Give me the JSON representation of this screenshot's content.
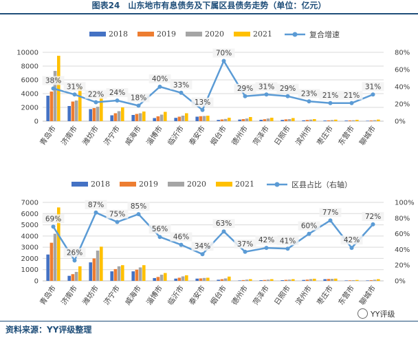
{
  "header": {
    "title": "图表24　山东地市有息债务及下属区县债务走势（单位：亿元）"
  },
  "footer": {
    "source": "资料来源：YY评级整理",
    "watermark": "YY评级"
  },
  "colors": {
    "2018": "#4472c4",
    "2019": "#ed7d31",
    "2020": "#a5a5a5",
    "2021": "#ffc000",
    "line": "#5b9bd5",
    "grid": "#d9d9d9"
  },
  "chart_data": [
    {
      "type": "bar",
      "categories": [
        "青岛市",
        "济南市",
        "潍坊市",
        "济宁市",
        "威海市",
        "淄博市",
        "临沂市",
        "泰安市",
        "烟台市",
        "德州市",
        "菏泽市",
        "日照市",
        "滨州市",
        "枣庄市",
        "东营市",
        "聊城市"
      ],
      "series": [
        {
          "name": "2018",
          "values": [
            3700,
            2200,
            1750,
            850,
            900,
            450,
            480,
            650,
            180,
            230,
            200,
            180,
            120,
            90,
            90,
            60
          ]
        },
        {
          "name": "2019",
          "values": [
            4300,
            2850,
            1900,
            1150,
            1050,
            700,
            650,
            720,
            250,
            300,
            280,
            260,
            180,
            120,
            110,
            100
          ]
        },
        {
          "name": "2020",
          "values": [
            7300,
            3000,
            2100,
            1450,
            1150,
            950,
            800,
            750,
            320,
            380,
            380,
            300,
            230,
            160,
            130,
            140
          ]
        },
        {
          "name": "2021",
          "values": [
            9500,
            4900,
            3450,
            2000,
            1400,
            1350,
            1150,
            790,
            500,
            600,
            500,
            450,
            300,
            220,
            190,
            230
          ]
        }
      ],
      "line": {
        "name": "复合增速",
        "axis": "right",
        "values": [
          38,
          31,
          22,
          24,
          18,
          40,
          33,
          13,
          70,
          29,
          31,
          29,
          23,
          21,
          21,
          31
        ],
        "labels": [
          "38%",
          "31%",
          "22%",
          "24%",
          "18%",
          "40%",
          "33%",
          "13%",
          "70%",
          "29%",
          "31%",
          "29%",
          "23%",
          "21%",
          "21%",
          "31%"
        ]
      },
      "legend": [
        "2018",
        "2019",
        "2020",
        "2021",
        "复合增速"
      ],
      "legend_position": "top",
      "ylim": [
        0,
        10000
      ],
      "y_ticks": [
        "0",
        "2000",
        "4000",
        "6000",
        "8000",
        "10000"
      ],
      "y2lim": [
        0,
        80
      ],
      "y2_ticks": [
        "0%",
        "20%",
        "40%",
        "60%",
        "80%"
      ],
      "grid": true
    },
    {
      "type": "bar",
      "categories": [
        "青岛市",
        "济南市",
        "潍坊市",
        "济宁市",
        "威海市",
        "淄博市",
        "临沂市",
        "泰安市",
        "烟台市",
        "德州市",
        "菏泽市",
        "日照市",
        "滨州市",
        "枣庄市",
        "东营市",
        "聊城市"
      ],
      "series": [
        {
          "name": "2018",
          "values": [
            2350,
            450,
            1650,
            850,
            850,
            250,
            200,
            200,
            100,
            40,
            60,
            60,
            80,
            150,
            40,
            40
          ]
        },
        {
          "name": "2019",
          "values": [
            3400,
            600,
            2000,
            1050,
            1000,
            350,
            280,
            220,
            150,
            70,
            80,
            90,
            110,
            170,
            50,
            60
          ]
        },
        {
          "name": "2020",
          "values": [
            4200,
            800,
            2700,
            1300,
            1200,
            550,
            400,
            260,
            220,
            110,
            110,
            110,
            160,
            180,
            60,
            100
          ]
        },
        {
          "name": "2021",
          "values": [
            6550,
            1300,
            3050,
            1400,
            1400,
            700,
            500,
            280,
            380,
            150,
            150,
            150,
            190,
            200,
            80,
            150
          ]
        }
      ],
      "line": {
        "name": "区县占比（右轴）",
        "axis": "right",
        "values": [
          69,
          26,
          87,
          75,
          85,
          56,
          46,
          34,
          63,
          37,
          42,
          41,
          60,
          77,
          42,
          72
        ],
        "labels": [
          "69%",
          "26%",
          "87%",
          "75%",
          "85%",
          "56%",
          "46%",
          "34%",
          "63%",
          "37%",
          "42%",
          "41%",
          "60%",
          "77%",
          "42%",
          "72%"
        ]
      },
      "legend": [
        "2018",
        "2019",
        "2020",
        "2021",
        "区县占比（右轴）"
      ],
      "legend_position": "top",
      "ylim": [
        0,
        7000
      ],
      "y_ticks": [
        "0",
        "1000",
        "2000",
        "3000",
        "4000",
        "5000",
        "6000",
        "7000"
      ],
      "y2lim": [
        0,
        100
      ],
      "y2_ticks": [
        "0%",
        "20%",
        "40%",
        "60%",
        "80%",
        "100%"
      ],
      "grid": true
    }
  ]
}
